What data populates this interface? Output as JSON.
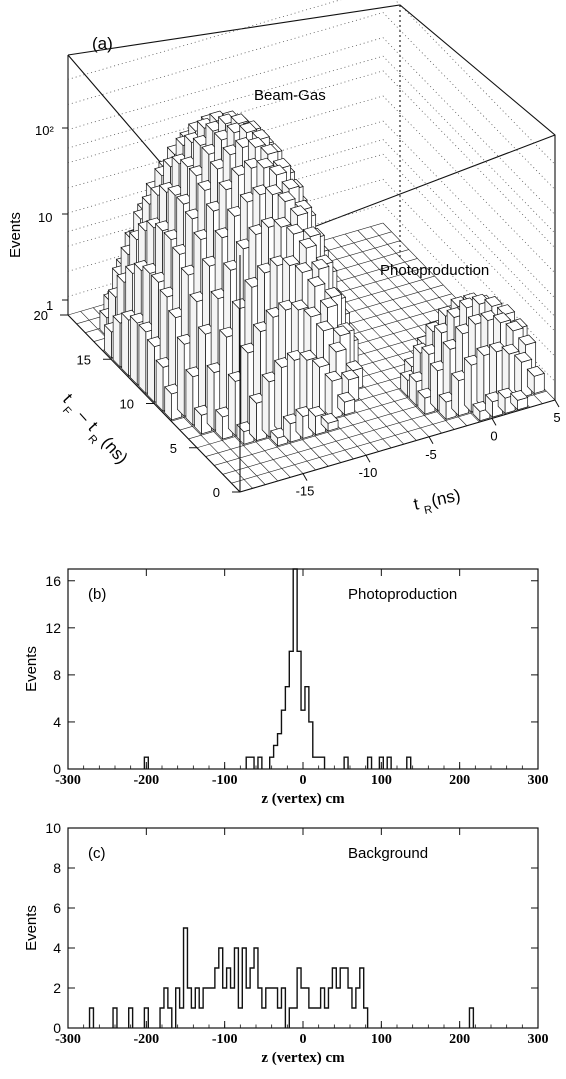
{
  "colors": {
    "ink": "#111111",
    "paper": "#ffffff",
    "bar_front": "#ffffff",
    "bar_top": "#f2f2f2",
    "bar_side": "#d8d8d8"
  },
  "chart_data": [
    {
      "type": "bar3d",
      "panel_label": "(a)",
      "z_label": "Events",
      "z_scale": "log",
      "z_ticks": [
        "1",
        "10",
        "10²"
      ],
      "x_label_prefix": "t",
      "x_label_sub": "R",
      "x_label_suffix": " (ns)",
      "x_ticks": [
        "-15",
        "-10",
        "-5",
        "0",
        "5"
      ],
      "y_label_parts": [
        "t",
        "F",
        "–",
        "t",
        "R",
        "(ns)"
      ],
      "y_ticks": [
        "0",
        "5",
        "10",
        "15",
        "20"
      ],
      "annotations": [
        "Beam-Gas",
        "Photoproduction"
      ],
      "bars_note": "histogram of events vs t_R and t_F - t_R; Beam-Gas peak ~200 events near t_R=-13, t_F-t_R=12; Photoproduction cluster ~3 events near t_R=-2..4, t_F-t_R=2..5"
    },
    {
      "type": "histogram",
      "panel_label": "(b)",
      "title": "Photoproduction",
      "xlabel": "z (vertex) cm",
      "ylabel": "Events",
      "xlim": [
        -300,
        300
      ],
      "ylim": [
        0,
        17
      ],
      "x_ticks": [
        "-300",
        "-200",
        "-100",
        "0",
        "100",
        "200",
        "300"
      ],
      "y_ticks": [
        "0",
        "4",
        "8",
        "12",
        "16"
      ],
      "bin_width": 5,
      "bins": [
        {
          "x": -200,
          "y": 1
        },
        {
          "x": -70,
          "y": 1
        },
        {
          "x": -65,
          "y": 1
        },
        {
          "x": -55,
          "y": 1
        },
        {
          "x": -40,
          "y": 1
        },
        {
          "x": -35,
          "y": 2
        },
        {
          "x": -30,
          "y": 3
        },
        {
          "x": -25,
          "y": 5
        },
        {
          "x": -20,
          "y": 7
        },
        {
          "x": -15,
          "y": 10
        },
        {
          "x": -10,
          "y": 17
        },
        {
          "x": -5,
          "y": 10
        },
        {
          "x": 0,
          "y": 5
        },
        {
          "x": 5,
          "y": 7
        },
        {
          "x": 10,
          "y": 4
        },
        {
          "x": 15,
          "y": 1
        },
        {
          "x": 20,
          "y": 1
        },
        {
          "x": 25,
          "y": 1
        },
        {
          "x": 55,
          "y": 1
        },
        {
          "x": 85,
          "y": 1
        },
        {
          "x": 100,
          "y": 1
        },
        {
          "x": 110,
          "y": 1
        },
        {
          "x": 135,
          "y": 1
        }
      ]
    },
    {
      "type": "histogram",
      "panel_label": "(c)",
      "title": "Background",
      "xlabel": "z (vertex) cm",
      "ylabel": "Events",
      "xlim": [
        -300,
        300
      ],
      "ylim": [
        0,
        10
      ],
      "x_ticks": [
        "-300",
        "-200",
        "-100",
        "0",
        "100",
        "200",
        "300"
      ],
      "y_ticks": [
        "0",
        "2",
        "4",
        "6",
        "8",
        "10"
      ],
      "bin_width": 5,
      "bins": [
        {
          "x": -270,
          "y": 1
        },
        {
          "x": -240,
          "y": 1
        },
        {
          "x": -220,
          "y": 1
        },
        {
          "x": -200,
          "y": 1
        },
        {
          "x": -180,
          "y": 1
        },
        {
          "x": -175,
          "y": 2
        },
        {
          "x": -170,
          "y": 1
        },
        {
          "x": -160,
          "y": 2
        },
        {
          "x": -155,
          "y": 1
        },
        {
          "x": -150,
          "y": 5
        },
        {
          "x": -145,
          "y": 2
        },
        {
          "x": -140,
          "y": 1
        },
        {
          "x": -135,
          "y": 2
        },
        {
          "x": -130,
          "y": 1
        },
        {
          "x": -125,
          "y": 2
        },
        {
          "x": -120,
          "y": 2
        },
        {
          "x": -115,
          "y": 2
        },
        {
          "x": -110,
          "y": 3
        },
        {
          "x": -105,
          "y": 4
        },
        {
          "x": -100,
          "y": 2
        },
        {
          "x": -95,
          "y": 3
        },
        {
          "x": -90,
          "y": 2
        },
        {
          "x": -85,
          "y": 4
        },
        {
          "x": -80,
          "y": 1
        },
        {
          "x": -75,
          "y": 4
        },
        {
          "x": -70,
          "y": 2
        },
        {
          "x": -65,
          "y": 3
        },
        {
          "x": -60,
          "y": 4
        },
        {
          "x": -55,
          "y": 2
        },
        {
          "x": -50,
          "y": 1
        },
        {
          "x": -45,
          "y": 2
        },
        {
          "x": -40,
          "y": 2
        },
        {
          "x": -35,
          "y": 2
        },
        {
          "x": -30,
          "y": 1
        },
        {
          "x": -25,
          "y": 2
        },
        {
          "x": -15,
          "y": 1
        },
        {
          "x": -10,
          "y": 1
        },
        {
          "x": -5,
          "y": 3
        },
        {
          "x": 0,
          "y": 2
        },
        {
          "x": 5,
          "y": 2
        },
        {
          "x": 10,
          "y": 1
        },
        {
          "x": 15,
          "y": 1
        },
        {
          "x": 20,
          "y": 1
        },
        {
          "x": 25,
          "y": 2
        },
        {
          "x": 30,
          "y": 1
        },
        {
          "x": 35,
          "y": 2
        },
        {
          "x": 40,
          "y": 3
        },
        {
          "x": 45,
          "y": 2
        },
        {
          "x": 50,
          "y": 3
        },
        {
          "x": 55,
          "y": 3
        },
        {
          "x": 60,
          "y": 2
        },
        {
          "x": 65,
          "y": 1
        },
        {
          "x": 70,
          "y": 2
        },
        {
          "x": 75,
          "y": 3
        },
        {
          "x": 80,
          "y": 1
        },
        {
          "x": 215,
          "y": 1
        }
      ]
    }
  ]
}
